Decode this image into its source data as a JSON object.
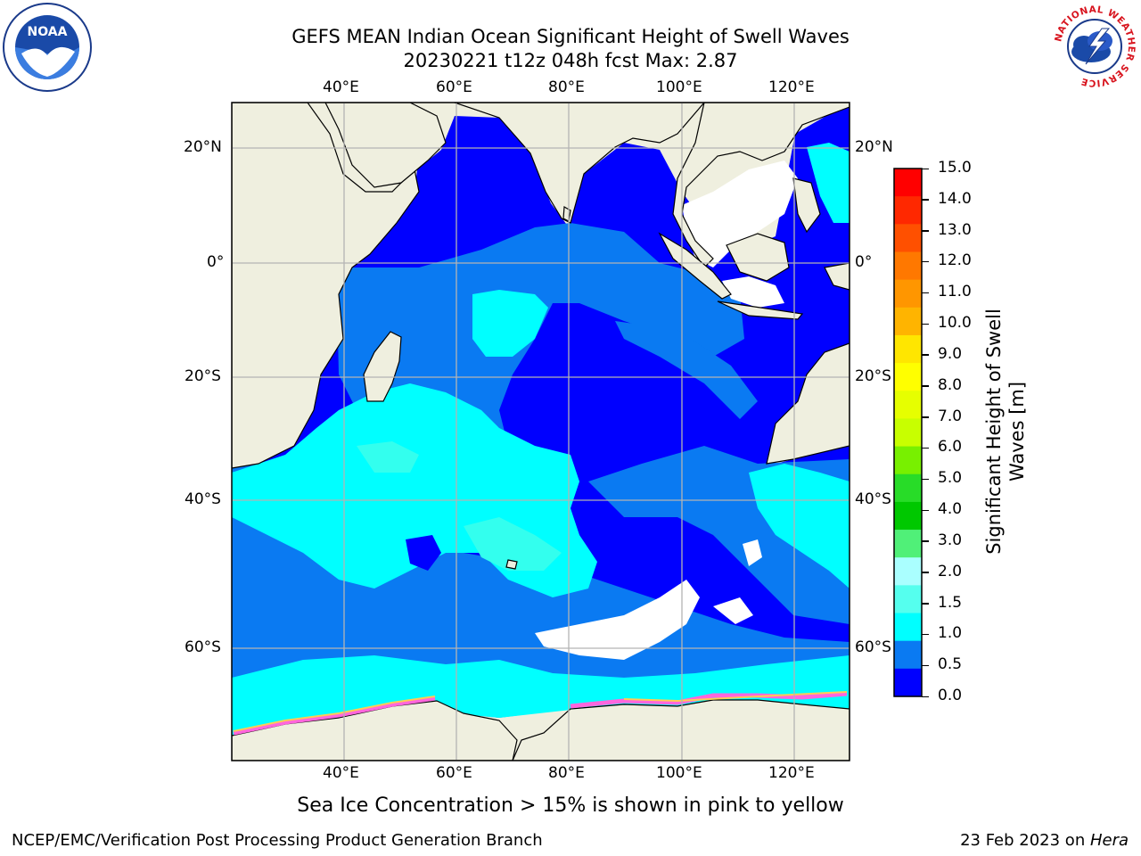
{
  "title": {
    "line1": "GEFS MEAN Indian Ocean Significant Height of Swell Waves",
    "line2": "20230221 t12z 048h fcst   Max: 2.87"
  },
  "map": {
    "lon_ticks": [
      "40°E",
      "60°E",
      "80°E",
      "100°E",
      "120°E"
    ],
    "lat_ticks": [
      "20°N",
      "0°",
      "20°S",
      "40°S",
      "60°S"
    ],
    "colors": {
      "land": "#efefdf",
      "band_0_0_5": "#0000ff",
      "band_0_5_1_0": "#0a7af2",
      "band_1_0_1_5": "#00ffff",
      "band_1_5_2_0": "#33ffee",
      "band_2_0_3_0": "#a8ffff",
      "no_data": "#ffffff",
      "sea_ice": "#ff66dd"
    }
  },
  "colorbar": {
    "label_line1": "Significant Height of Swell",
    "label_line2": "Waves [m]",
    "ticks": [
      "15.0",
      "14.0",
      "13.0",
      "12.0",
      "11.0",
      "10.0",
      "9.0",
      "8.0",
      "7.0",
      "6.0",
      "5.0",
      "4.0",
      "3.0",
      "2.0",
      "1.5",
      "1.0",
      "0.5",
      "0.0"
    ],
    "colors": [
      "#ff0000",
      "#ff2800",
      "#ff5000",
      "#ff7800",
      "#ff9600",
      "#ffb400",
      "#ffe600",
      "#ffff00",
      "#e6ff00",
      "#c8ff00",
      "#78f000",
      "#28dc28",
      "#00c800",
      "#50f078",
      "#aaffff",
      "#55ffee",
      "#00ffff",
      "#0a7af2",
      "#0000ff"
    ]
  },
  "logos": {
    "noaa": "NOAA",
    "nws_ring": "NATIONAL WEATHER SERVICE"
  },
  "footer": {
    "note": "Sea Ice Concentration > 15% is shown in pink to yellow",
    "left": "NCEP/EMC/Verification Post Processing Product Generation Branch",
    "right_prefix": "23 Feb 2023 on ",
    "right_host": "Hera"
  }
}
